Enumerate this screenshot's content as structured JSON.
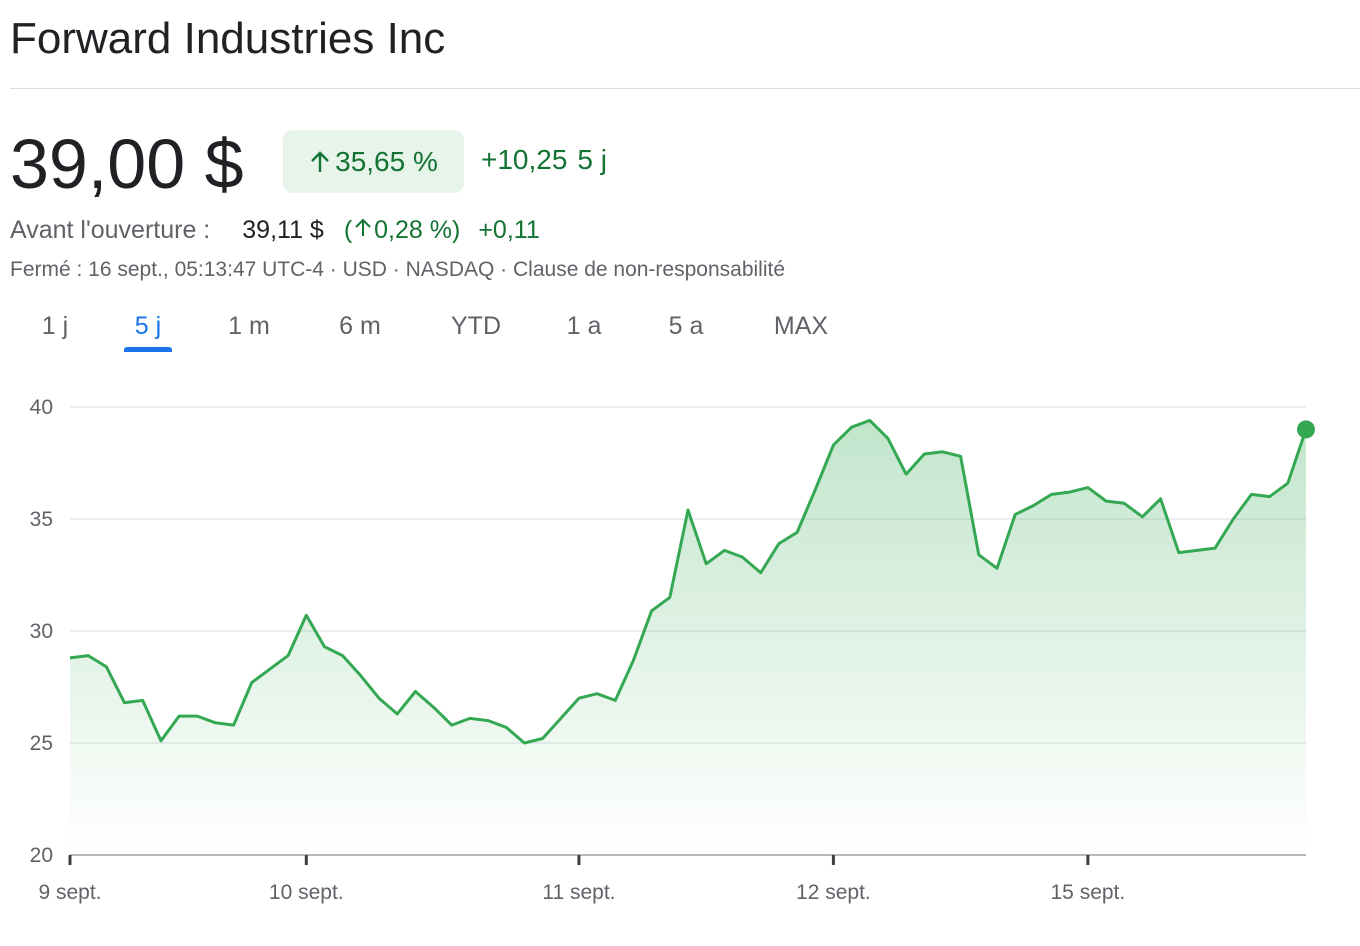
{
  "header": {
    "title": "Forward Industries Inc"
  },
  "quote": {
    "price": "39,00 $",
    "change_percent": "35,65 %",
    "change_abs": "+10,25",
    "change_period": "5 j",
    "premarket_label": "Avant l'ouverture :",
    "premarket_price": "39,11 $",
    "premarket_open_paren": "(",
    "premarket_change_percent": "0,28 %",
    "premarket_close_paren": ")",
    "premarket_change_abs": "+0,11",
    "meta_text": "Fermé : 16 sept., 05:13:47 UTC-4 · USD · NASDAQ · ",
    "disclaimer_link": "Clause de non-responsabilité",
    "up_color": "#137333",
    "up_bg_color": "#e6f4ea",
    "arrow_icon": "arrow-up-icon"
  },
  "tabs": [
    {
      "label": "1 j",
      "active": false
    },
    {
      "label": "5 j",
      "active": true
    },
    {
      "label": "1 m",
      "active": false
    },
    {
      "label": "6 m",
      "active": false
    },
    {
      "label": "YTD",
      "active": false
    },
    {
      "label": "1 a",
      "active": false
    },
    {
      "label": "5 a",
      "active": false
    },
    {
      "label": "MAX",
      "active": false
    }
  ],
  "accent_color": "#1a73e8",
  "chart_data": {
    "type": "area",
    "series_color": "#34a853",
    "ylim": [
      20,
      40
    ],
    "yticks": [
      40,
      35,
      30,
      25,
      20
    ],
    "grid": true,
    "x_tick_labels": [
      {
        "label": "9 sept.",
        "index": 0
      },
      {
        "label": "10 sept.",
        "index": 13
      },
      {
        "label": "11 sept.",
        "index": 28
      },
      {
        "label": "12 sept.",
        "index": 42
      },
      {
        "label": "15 sept.",
        "index": 56
      }
    ],
    "last_index": 68,
    "values": [
      28.8,
      28.9,
      28.4,
      26.8,
      26.9,
      25.1,
      26.2,
      26.2,
      25.9,
      25.8,
      27.7,
      28.3,
      28.9,
      30.7,
      29.3,
      28.9,
      28.0,
      27.0,
      26.3,
      27.3,
      26.6,
      25.8,
      26.1,
      26.0,
      25.7,
      25.0,
      25.2,
      26.1,
      27.0,
      27.2,
      26.9,
      28.7,
      30.9,
      31.5,
      35.4,
      33.0,
      33.6,
      33.3,
      32.6,
      33.9,
      34.4,
      36.3,
      38.3,
      39.1,
      39.4,
      38.6,
      37.0,
      37.9,
      38.0,
      37.8,
      33.4,
      32.8,
      35.2,
      35.6,
      36.1,
      36.2,
      36.4,
      35.8,
      35.7,
      35.1,
      35.9,
      33.5,
      33.6,
      33.7,
      35.0,
      36.1,
      36.0,
      36.6,
      39.0
    ]
  }
}
